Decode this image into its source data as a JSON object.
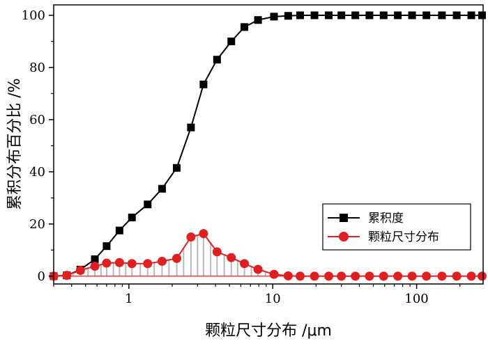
{
  "chart_data": {
    "type": "line",
    "xscale": "log",
    "xlim": [
      0.3,
      290
    ],
    "ylim": [
      -3,
      104
    ],
    "xlabel": "颗粒尺寸分布 /μm",
    "ylabel": "累积分布百分比 /%",
    "xticks": [
      1,
      10,
      100
    ],
    "xtick_labels": [
      "1",
      "10",
      "100"
    ],
    "yticks": [
      0,
      20,
      40,
      60,
      80,
      100
    ],
    "ytick_labels": [
      "0",
      "20",
      "40",
      "60",
      "80",
      "100"
    ],
    "grid": false,
    "legend_position": "center-right",
    "series": [
      {
        "name": "累积度",
        "color": "#000000",
        "marker": "square",
        "points": [
          [
            0.3,
            0
          ],
          [
            0.37,
            0.3
          ],
          [
            0.46,
            2.5
          ],
          [
            0.58,
            6.5
          ],
          [
            0.7,
            11.5
          ],
          [
            0.86,
            17.5
          ],
          [
            1.05,
            22.5
          ],
          [
            1.35,
            27.5
          ],
          [
            1.7,
            33.5
          ],
          [
            2.15,
            41.5
          ],
          [
            2.7,
            57
          ],
          [
            3.3,
            73.5
          ],
          [
            4.1,
            83
          ],
          [
            5.15,
            90
          ],
          [
            6.35,
            95.5
          ],
          [
            7.9,
            98.2
          ],
          [
            10.2,
            99.5
          ],
          [
            12.8,
            99.8
          ],
          [
            15.5,
            100
          ],
          [
            19.5,
            100
          ],
          [
            24.5,
            100
          ],
          [
            30,
            100
          ],
          [
            37.5,
            100
          ],
          [
            47,
            100
          ],
          [
            59,
            100
          ],
          [
            74,
            100
          ],
          [
            93,
            100
          ],
          [
            117,
            100
          ],
          [
            150,
            100
          ],
          [
            190,
            100
          ],
          [
            240,
            100
          ],
          [
            285,
            100
          ]
        ]
      },
      {
        "name": "颗粒尺寸分布",
        "color": "#e02020",
        "marker": "circle",
        "points": [
          [
            0.3,
            0
          ],
          [
            0.37,
            0.3
          ],
          [
            0.46,
            2.2
          ],
          [
            0.58,
            3.8
          ],
          [
            0.7,
            5
          ],
          [
            0.86,
            5.2
          ],
          [
            1.05,
            4.8
          ],
          [
            1.35,
            4.8
          ],
          [
            1.7,
            5.7
          ],
          [
            2.15,
            6.8
          ],
          [
            2.7,
            15
          ],
          [
            3.3,
            16.3
          ],
          [
            4.1,
            9.3
          ],
          [
            5.15,
            7.1
          ],
          [
            6.35,
            4.8
          ],
          [
            7.9,
            2.6
          ],
          [
            10.2,
            0.7
          ],
          [
            12.8,
            0.1
          ],
          [
            15.5,
            0
          ],
          [
            19.5,
            0
          ],
          [
            24.5,
            0
          ],
          [
            30,
            0
          ],
          [
            37.5,
            0
          ],
          [
            47,
            0
          ],
          [
            59,
            0
          ],
          [
            74,
            0
          ],
          [
            93,
            0
          ],
          [
            117,
            0
          ],
          [
            150,
            0
          ],
          [
            190,
            0
          ],
          [
            240,
            0
          ],
          [
            285,
            0
          ]
        ]
      }
    ],
    "distribution_bars": {
      "color": "#b8b8b8",
      "points": [
        [
          0.33,
          0.2
        ],
        [
          0.37,
          0.3
        ],
        [
          0.41,
          0.8
        ],
        [
          0.46,
          2.2
        ],
        [
          0.52,
          3.0
        ],
        [
          0.58,
          3.8
        ],
        [
          0.64,
          4.4
        ],
        [
          0.7,
          5
        ],
        [
          0.78,
          5.1
        ],
        [
          0.86,
          5.2
        ],
        [
          0.95,
          5.0
        ],
        [
          1.05,
          4.8
        ],
        [
          1.2,
          4.8
        ],
        [
          1.35,
          4.8
        ],
        [
          1.5,
          5.2
        ],
        [
          1.7,
          5.7
        ],
        [
          1.9,
          6.2
        ],
        [
          2.15,
          6.8
        ],
        [
          2.4,
          10.5
        ],
        [
          2.7,
          15
        ],
        [
          3.0,
          15.8
        ],
        [
          3.3,
          16.3
        ],
        [
          3.7,
          13
        ],
        [
          4.1,
          9.3
        ],
        [
          4.6,
          8.2
        ],
        [
          5.15,
          7.1
        ],
        [
          5.7,
          6
        ],
        [
          6.35,
          4.8
        ],
        [
          7.1,
          3.7
        ],
        [
          7.9,
          2.6
        ],
        [
          8.9,
          1.6
        ],
        [
          10.2,
          0.7
        ],
        [
          11.4,
          0.4
        ],
        [
          12.8,
          0.1
        ]
      ]
    },
    "legend": [
      {
        "label": "累积度",
        "color": "#000000",
        "marker": "square"
      },
      {
        "label": "颗粒尺寸分布",
        "color": "#e02020",
        "marker": "circle"
      }
    ]
  }
}
